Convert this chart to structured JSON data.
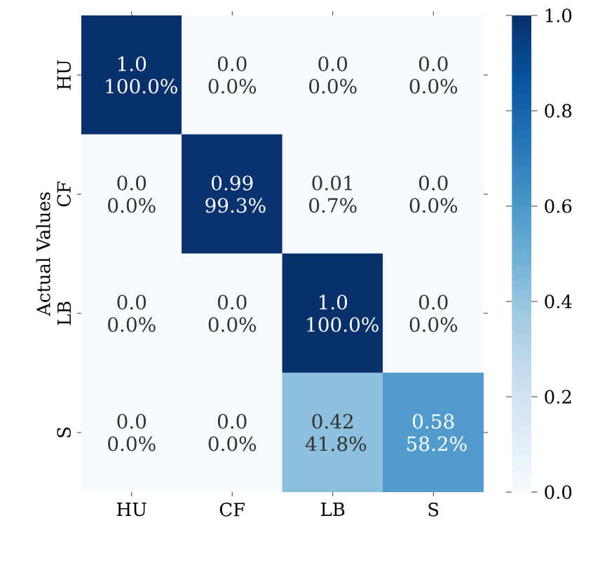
{
  "chart_data": {
    "type": "heatmap",
    "ylabel": "Actual Values",
    "categories": [
      "HU",
      "CF",
      "LB",
      "S"
    ],
    "y_categories": [
      "HU",
      "CF",
      "LB",
      "S"
    ],
    "cells": [
      [
        1.0,
        0.0,
        0.0,
        0.0
      ],
      [
        0.0,
        0.99,
        0.01,
        0.0
      ],
      [
        0.0,
        0.0,
        1.0,
        0.0
      ],
      [
        0.0,
        0.0,
        0.42,
        0.58
      ]
    ],
    "cell_labels": [
      [
        "1.0 100.0%",
        "0.0 0.0%",
        "0.0 0.0%",
        "0.0 0.0%"
      ],
      [
        "0.0 0.0%",
        "0.99 99.3%",
        "0.01 0.7%",
        "0.0 0.0%"
      ],
      [
        "0.0 0.0%",
        "0.0 0.0%",
        "1.0 100.0%",
        "0.0 0.0%"
      ],
      [
        "0.0 0.0%",
        "0.0 0.0%",
        "0.42 41.8%",
        "0.58 58.2%"
      ]
    ],
    "clim": [
      0,
      1
    ],
    "cticks": [
      {
        "value": 0,
        "label": "0.0"
      },
      {
        "value": 0.2,
        "label": "0.2"
      },
      {
        "value": 0.4,
        "label": "0.4"
      },
      {
        "value": 0.6,
        "label": "0.6"
      },
      {
        "value": 0.8,
        "label": "0.8"
      },
      {
        "value": 1,
        "label": "1.0"
      }
    ]
  }
}
